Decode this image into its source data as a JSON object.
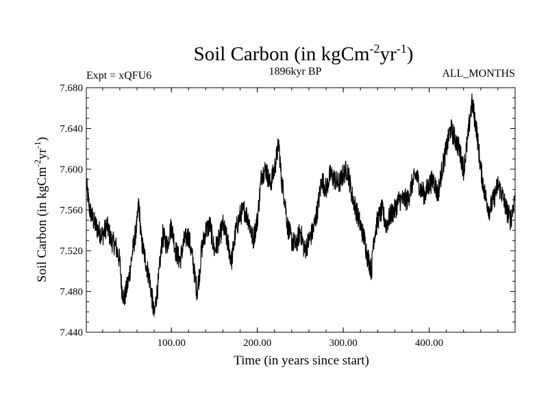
{
  "chart_data": {
    "type": "line",
    "title": "Soil Carbon (in kgCm",
    "title_sup1": "-2",
    "title_mid": "yr",
    "title_sup2": "-1",
    "title_end": ")",
    "header_left": "Expt = xQFU6",
    "header_center": "1896kyr BP",
    "header_right": "ALL_MONTHS",
    "xlabel": "Time (in years since start)",
    "ylabel_parts": {
      "pre": "Soil Carbon (in kgCm",
      "sup1": "-2",
      "mid": "yr",
      "sup2": "-1",
      "end": ")"
    },
    "xlim": [
      1,
      500
    ],
    "ylim": [
      7.44,
      7.68
    ],
    "x_ticks": [
      100,
      200,
      300,
      400
    ],
    "x_tick_labels": [
      "100.00",
      "200.00",
      "300.00",
      "400.00"
    ],
    "y_ticks": [
      7.44,
      7.48,
      7.52,
      7.56,
      7.6,
      7.64,
      7.68
    ],
    "y_tick_labels": [
      "7.440",
      "7.480",
      "7.520",
      "7.560",
      "7.600",
      "7.640",
      "7.680"
    ],
    "line_color": "#000000",
    "series": [
      {
        "name": "Soil Carbon",
        "x": [
          1,
          5,
          10,
          15,
          20,
          25,
          30,
          35,
          40,
          42,
          45,
          50,
          55,
          60,
          62,
          65,
          70,
          75,
          78,
          80,
          82,
          85,
          88,
          90,
          95,
          100,
          105,
          110,
          115,
          120,
          125,
          128,
          130,
          133,
          135,
          140,
          145,
          150,
          155,
          160,
          165,
          170,
          175,
          180,
          185,
          190,
          195,
          200,
          205,
          210,
          215,
          220,
          225,
          228,
          232,
          235,
          240,
          245,
          250,
          255,
          260,
          265,
          270,
          275,
          280,
          285,
          290,
          295,
          300,
          305,
          310,
          315,
          320,
          325,
          328,
          330,
          333,
          335,
          340,
          345,
          350,
          355,
          360,
          365,
          370,
          375,
          380,
          385,
          390,
          395,
          400,
          405,
          410,
          415,
          420,
          425,
          430,
          435,
          440,
          445,
          448,
          450,
          455,
          460,
          465,
          470,
          475,
          480,
          485,
          490,
          495,
          500
        ],
        "values": [
          7.585,
          7.56,
          7.548,
          7.54,
          7.535,
          7.545,
          7.53,
          7.525,
          7.51,
          7.485,
          7.472,
          7.49,
          7.52,
          7.545,
          7.568,
          7.53,
          7.51,
          7.49,
          7.47,
          7.455,
          7.472,
          7.49,
          7.52,
          7.535,
          7.525,
          7.545,
          7.52,
          7.51,
          7.53,
          7.535,
          7.51,
          7.49,
          7.48,
          7.5,
          7.52,
          7.54,
          7.545,
          7.52,
          7.53,
          7.545,
          7.53,
          7.51,
          7.54,
          7.555,
          7.56,
          7.55,
          7.53,
          7.55,
          7.595,
          7.6,
          7.585,
          7.6,
          7.625,
          7.59,
          7.57,
          7.545,
          7.53,
          7.525,
          7.54,
          7.52,
          7.53,
          7.54,
          7.56,
          7.59,
          7.58,
          7.595,
          7.59,
          7.585,
          7.595,
          7.6,
          7.575,
          7.56,
          7.545,
          7.53,
          7.515,
          7.51,
          7.5,
          7.53,
          7.55,
          7.56,
          7.545,
          7.555,
          7.56,
          7.57,
          7.57,
          7.57,
          7.585,
          7.595,
          7.58,
          7.575,
          7.585,
          7.59,
          7.575,
          7.6,
          7.62,
          7.64,
          7.63,
          7.62,
          7.6,
          7.63,
          7.655,
          7.665,
          7.64,
          7.6,
          7.575,
          7.56,
          7.57,
          7.585,
          7.575,
          7.56,
          7.55,
          7.575
        ]
      }
    ]
  }
}
